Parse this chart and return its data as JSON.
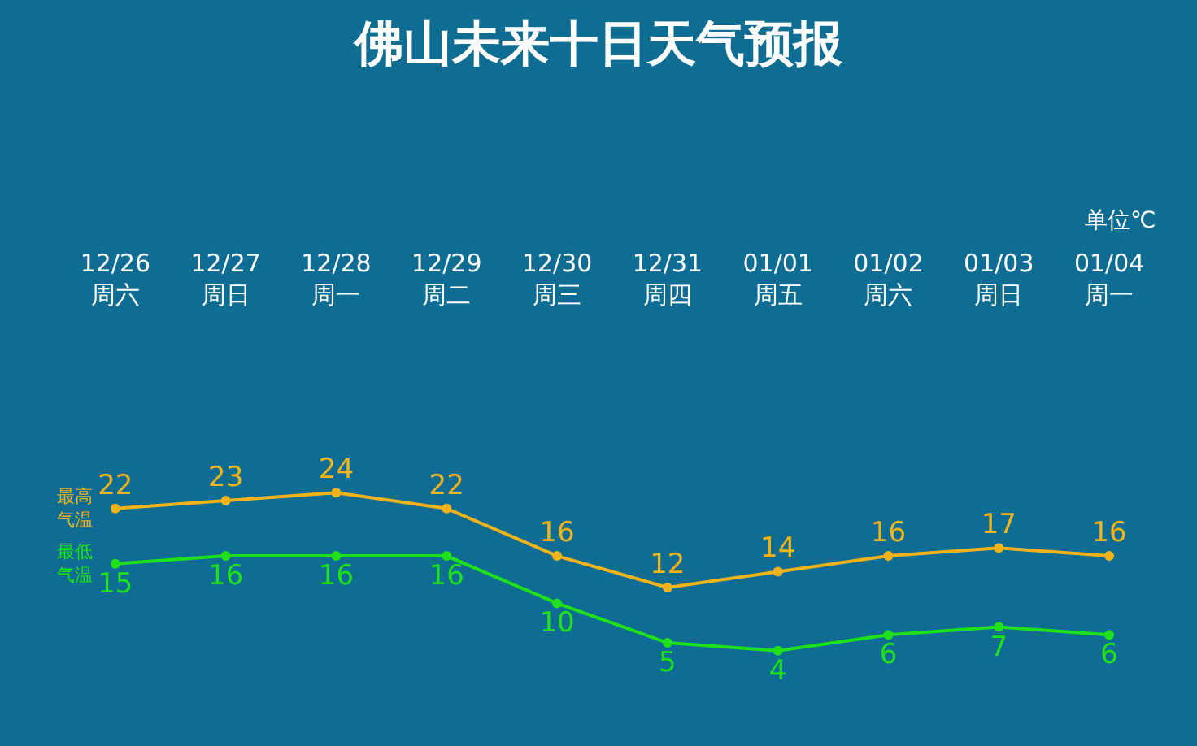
{
  "chart_data": {
    "type": "line",
    "title": "佛山未来十日天气预报",
    "annotations": [
      "单位℃"
    ],
    "categories": [
      "12/26\n周六",
      "12/27\n周日",
      "12/28\n周一",
      "12/29\n周二",
      "12/30\n周三",
      "12/31\n周四",
      "01/01\n周五",
      "01/02\n周六",
      "01/03\n周日",
      "01/04\n周一"
    ],
    "series": [
      {
        "name": "最高气温",
        "color": "#f0b31a",
        "values": [
          22,
          23,
          24,
          22,
          16,
          12,
          14,
          16,
          17,
          16
        ]
      },
      {
        "name": "最低气温",
        "color": "#1fe01a",
        "values": [
          15,
          16,
          16,
          16,
          10,
          5,
          4,
          6,
          7,
          6
        ]
      }
    ],
    "data_labels": true,
    "marker": "circle",
    "line_style": "solid",
    "grid": false,
    "legend": false
  }
}
